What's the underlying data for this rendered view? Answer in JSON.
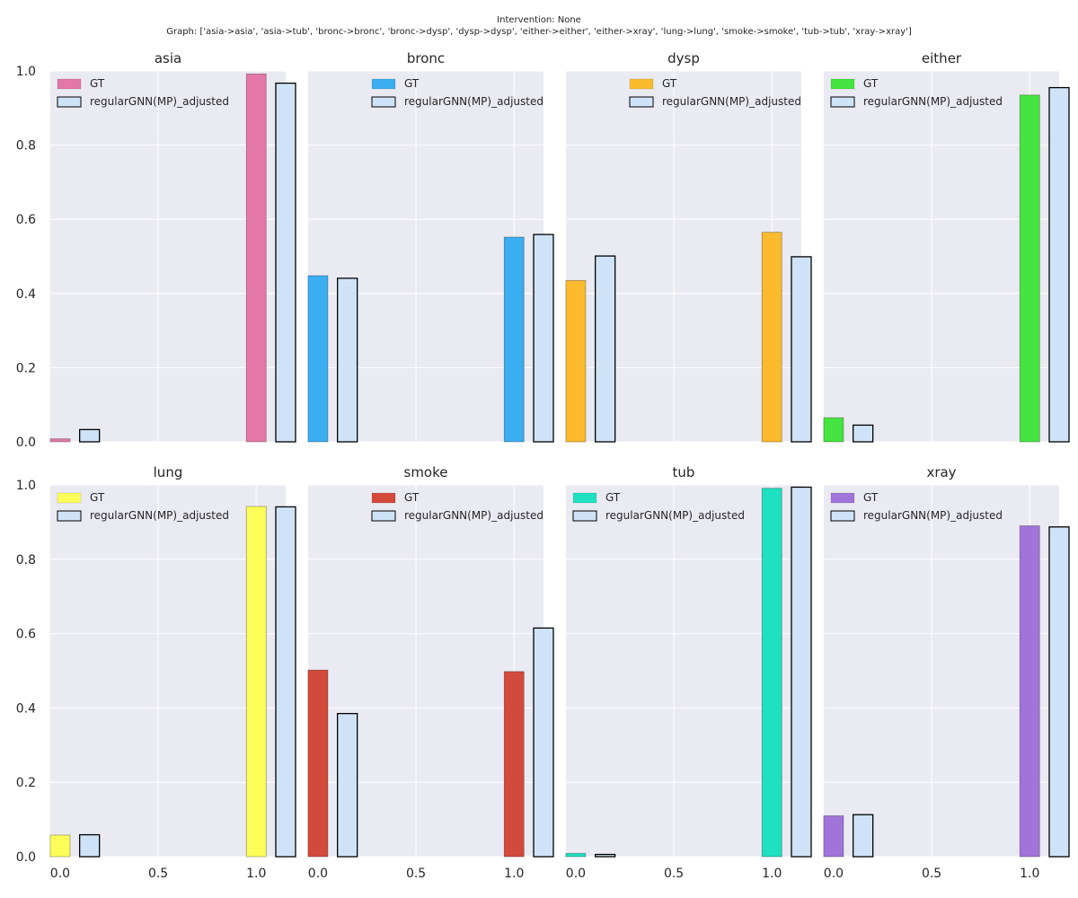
{
  "suptitle": {
    "line1": "Intervention: None",
    "line2": "Graph: ['asia->asia', 'asia->tub', 'bronc->bronc', 'bronc->dysp', 'dysp->dysp', 'either->either', 'either->xray', 'lung->lung', 'smoke->smoke', 'tub->tub', 'xray->xray']"
  },
  "chart_data": [
    {
      "type": "bar",
      "title": "asia",
      "color": "#e377a8",
      "x_ticks": [
        "0.0",
        "0.5",
        "1.0"
      ],
      "y_ticks": [
        "0.0",
        "0.2",
        "0.4",
        "0.6",
        "0.8",
        "1.0"
      ],
      "xlim": [
        -0.05,
        1.15
      ],
      "ylim": [
        0,
        1.0
      ],
      "series": [
        {
          "name": "GT",
          "x": [
            0.0,
            1.0
          ],
          "values": [
            0.008,
            0.992
          ]
        },
        {
          "name": "regularGNN(MP)_adjusted",
          "x": [
            0.15,
            1.15
          ],
          "values": [
            0.033,
            0.967
          ]
        }
      ],
      "legend": [
        "GT",
        "regularGNN(MP)_adjusted"
      ],
      "legend_loc": "upper-left"
    },
    {
      "type": "bar",
      "title": "bronc",
      "color": "#3aaef0",
      "x_ticks": [
        "0.0",
        "0.5",
        "1.0"
      ],
      "y_ticks": [
        "0.0",
        "0.2",
        "0.4",
        "0.6",
        "0.8",
        "1.0"
      ],
      "xlim": [
        -0.05,
        1.15
      ],
      "ylim": [
        0,
        1.0
      ],
      "series": [
        {
          "name": "GT",
          "x": [
            0.0,
            1.0
          ],
          "values": [
            0.448,
            0.552
          ]
        },
        {
          "name": "regularGNN(MP)_adjusted",
          "x": [
            0.15,
            1.15
          ],
          "values": [
            0.441,
            0.559
          ]
        }
      ],
      "legend": [
        "GT",
        "regularGNN(MP)_adjusted"
      ],
      "legend_loc": "upper-center"
    },
    {
      "type": "bar",
      "title": "dysp",
      "color": "#fbbb2c",
      "x_ticks": [
        "0.0",
        "0.5",
        "1.0"
      ],
      "y_ticks": [
        "0.0",
        "0.2",
        "0.4",
        "0.6",
        "0.8",
        "1.0"
      ],
      "xlim": [
        -0.05,
        1.15
      ],
      "ylim": [
        0,
        1.0
      ],
      "series": [
        {
          "name": "GT",
          "x": [
            0.0,
            1.0
          ],
          "values": [
            0.435,
            0.565
          ]
        },
        {
          "name": "regularGNN(MP)_adjusted",
          "x": [
            0.15,
            1.15
          ],
          "values": [
            0.501,
            0.499
          ]
        }
      ],
      "legend": [
        "GT",
        "regularGNN(MP)_adjusted"
      ],
      "legend_loc": "upper-center"
    },
    {
      "type": "bar",
      "title": "either",
      "color": "#46e440",
      "x_ticks": [
        "0.0",
        "0.5",
        "1.0"
      ],
      "y_ticks": [
        "0.0",
        "0.2",
        "0.4",
        "0.6",
        "0.8",
        "1.0"
      ],
      "xlim": [
        -0.05,
        1.15
      ],
      "ylim": [
        0,
        1.0
      ],
      "series": [
        {
          "name": "GT",
          "x": [
            0.0,
            1.0
          ],
          "values": [
            0.065,
            0.935
          ]
        },
        {
          "name": "regularGNN(MP)_adjusted",
          "x": [
            0.15,
            1.15
          ],
          "values": [
            0.045,
            0.955
          ]
        }
      ],
      "legend": [
        "GT",
        "regularGNN(MP)_adjusted"
      ],
      "legend_loc": "upper-left"
    },
    {
      "type": "bar",
      "title": "lung",
      "color": "#fdfd5a",
      "x_ticks": [
        "0.0",
        "0.5",
        "1.0"
      ],
      "y_ticks": [
        "0.0",
        "0.2",
        "0.4",
        "0.6",
        "0.8",
        "1.0"
      ],
      "xlim": [
        -0.05,
        1.15
      ],
      "ylim": [
        0,
        1.0
      ],
      "series": [
        {
          "name": "GT",
          "x": [
            0.0,
            1.0
          ],
          "values": [
            0.058,
            0.942
          ]
        },
        {
          "name": "regularGNN(MP)_adjusted",
          "x": [
            0.15,
            1.15
          ],
          "values": [
            0.059,
            0.941
          ]
        }
      ],
      "legend": [
        "GT",
        "regularGNN(MP)_adjusted"
      ],
      "legend_loc": "upper-left"
    },
    {
      "type": "bar",
      "title": "smoke",
      "color": "#d44a3a",
      "x_ticks": [
        "0.0",
        "0.5",
        "1.0"
      ],
      "y_ticks": [
        "0.0",
        "0.2",
        "0.4",
        "0.6",
        "0.8",
        "1.0"
      ],
      "xlim": [
        -0.05,
        1.15
      ],
      "ylim": [
        0,
        1.0
      ],
      "series": [
        {
          "name": "GT",
          "x": [
            0.0,
            1.0
          ],
          "values": [
            0.502,
            0.498
          ]
        },
        {
          "name": "regularGNN(MP)_adjusted",
          "x": [
            0.15,
            1.15
          ],
          "values": [
            0.385,
            0.615
          ]
        }
      ],
      "legend": [
        "GT",
        "regularGNN(MP)_adjusted"
      ],
      "legend_loc": "upper-center"
    },
    {
      "type": "bar",
      "title": "tub",
      "color": "#1fe0c0",
      "x_ticks": [
        "0.0",
        "0.5",
        "1.0"
      ],
      "y_ticks": [
        "0.0",
        "0.2",
        "0.4",
        "0.6",
        "0.8",
        "1.0"
      ],
      "xlim": [
        -0.05,
        1.15
      ],
      "ylim": [
        0,
        1.0
      ],
      "series": [
        {
          "name": "GT",
          "x": [
            0.0,
            1.0
          ],
          "values": [
            0.009,
            0.991
          ]
        },
        {
          "name": "regularGNN(MP)_adjusted",
          "x": [
            0.15,
            1.15
          ],
          "values": [
            0.006,
            0.994
          ]
        }
      ],
      "legend": [
        "GT",
        "regularGNN(MP)_adjusted"
      ],
      "legend_loc": "upper-left"
    },
    {
      "type": "bar",
      "title": "xray",
      "color": "#a074d8",
      "x_ticks": [
        "0.0",
        "0.5",
        "1.0"
      ],
      "y_ticks": [
        "0.0",
        "0.2",
        "0.4",
        "0.6",
        "0.8",
        "1.0"
      ],
      "xlim": [
        -0.05,
        1.15
      ],
      "ylim": [
        0,
        1.0
      ],
      "series": [
        {
          "name": "GT",
          "x": [
            0.0,
            1.0
          ],
          "values": [
            0.11,
            0.89
          ]
        },
        {
          "name": "regularGNN(MP)_adjusted",
          "x": [
            0.15,
            1.15
          ],
          "values": [
            0.113,
            0.887
          ]
        }
      ],
      "legend": [
        "GT",
        "regularGNN(MP)_adjusted"
      ],
      "legend_loc": "upper-left"
    }
  ],
  "colors": {
    "plot_bg": "#eaeaf2",
    "grid": "#ffffff",
    "prediction_fill": "#cfe3f8",
    "edge": "#000000"
  }
}
